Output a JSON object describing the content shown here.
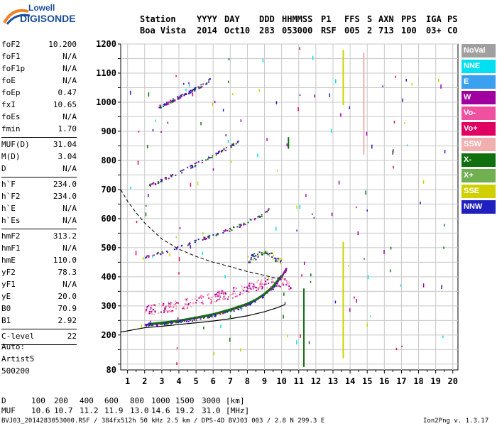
{
  "logo": {
    "top": "Lowell",
    "main": "DIGISONDE"
  },
  "header": {
    "row1": [
      "Station",
      "YYYY",
      "DAY",
      "DDD",
      "HHMMSS",
      "P1",
      "FFS",
      "S",
      "AXN",
      "PPS",
      "IGA",
      "PS"
    ],
    "row2": [
      "Boa Vista",
      "2014",
      "Oct10",
      "283",
      "053000",
      "RSF",
      "005",
      "2",
      "713",
      "100",
      "03+",
      "C0"
    ]
  },
  "params": [
    {
      "name": "foF2",
      "value": "10.200"
    },
    {
      "name": "foF1",
      "value": "N/A"
    },
    {
      "name": "foF1p",
      "value": "N/A"
    },
    {
      "name": "foE",
      "value": "N/A"
    },
    {
      "name": "foEp",
      "value": "0.47"
    },
    {
      "name": "fxI",
      "value": "10.65"
    },
    {
      "name": "foEs",
      "value": "N/A"
    },
    {
      "name": "fmin",
      "value": "1.70"
    },
    {
      "name": "MUF(D)",
      "value": "31.04"
    },
    {
      "name": "M(D)",
      "value": "3.04"
    },
    {
      "name": "D",
      "value": "N/A"
    },
    {
      "name": "h`F",
      "value": "234.0"
    },
    {
      "name": "h`F2",
      "value": "234.0"
    },
    {
      "name": "h`E",
      "value": "N/A"
    },
    {
      "name": "h`Es",
      "value": "N/A"
    },
    {
      "name": "hmF2",
      "value": "313.2"
    },
    {
      "name": "hmF1",
      "value": "N/A"
    },
    {
      "name": "hmE",
      "value": "110.0"
    },
    {
      "name": "yF2",
      "value": "78.3"
    },
    {
      "name": "yF1",
      "value": "N/A"
    },
    {
      "name": "yE",
      "value": "20.0"
    },
    {
      "name": "B0",
      "value": "70.9"
    },
    {
      "name": "B1",
      "value": "2.92"
    },
    {
      "name": "C-level",
      "value": "22"
    }
  ],
  "auto": {
    "label": "Auto:",
    "artist": "Artist5",
    "code": "500200"
  },
  "footer": {
    "d_label": "D",
    "d_values": [
      "100",
      "200",
      "400",
      "600",
      "800",
      "1000",
      "1500",
      "3000",
      "[km]"
    ],
    "muf_label": "MUF",
    "muf_values": [
      "10.6",
      "10.7",
      "11.2",
      "11.9",
      "13.0",
      "14.6",
      "19.2",
      "31.0",
      "[MHz]"
    ],
    "file_info": "BVJ03_2014283053000.RSF / 384fx512h 50 kHz 2.5 km / DPS-4D BVJ03 003 / 2.8 N 299.3 E",
    "version": "Ion2Png v. 1.3.17"
  },
  "legend": [
    {
      "label": "NoVal",
      "color": "#a0a0a0"
    },
    {
      "label": "NNE",
      "color": "#00e0f0"
    },
    {
      "label": "E",
      "color": "#3aa0f0"
    },
    {
      "label": "W",
      "color": "#a000a0"
    },
    {
      "label": "Vo-",
      "color": "#f050a0"
    },
    {
      "label": "Vo+",
      "color": "#e00060"
    },
    {
      "label": "SSW",
      "color": "#f0b0b0"
    },
    {
      "label": "X-",
      "color": "#107010"
    },
    {
      "label": "X+",
      "color": "#70b050"
    },
    {
      "label": "SSE",
      "color": "#d0d000"
    },
    {
      "label": "NNW",
      "color": "#2020c0"
    }
  ],
  "chart_data": {
    "type": "scatter",
    "x_ticks": [
      1,
      2,
      3,
      4,
      5,
      6,
      7,
      8,
      9,
      10,
      11,
      12,
      13,
      14,
      15,
      16,
      17,
      18,
      19,
      20
    ],
    "y_ticks": [
      80,
      200,
      300,
      400,
      500,
      600,
      700,
      800,
      900,
      1000,
      1100,
      1200
    ],
    "xlim": [
      0.6,
      20.3
    ],
    "ylim": [
      80,
      1200
    ],
    "grid": true,
    "traces": [
      {
        "name": "O-trace",
        "color": "#a000a0",
        "points": [
          [
            2,
            235
          ],
          [
            3,
            240
          ],
          [
            4,
            248
          ],
          [
            5,
            258
          ],
          [
            6,
            270
          ],
          [
            7,
            285
          ],
          [
            8,
            305
          ],
          [
            8.5,
            320
          ],
          [
            9,
            340
          ],
          [
            9.5,
            365
          ],
          [
            10,
            400
          ],
          [
            10.3,
            430
          ]
        ]
      },
      {
        "name": "X-trace",
        "color": "#107010",
        "points": [
          [
            2.2,
            238
          ],
          [
            3,
            243
          ],
          [
            4,
            250
          ],
          [
            5,
            260
          ],
          [
            6,
            272
          ],
          [
            7,
            288
          ],
          [
            8,
            308
          ],
          [
            8.5,
            322
          ],
          [
            9,
            342
          ],
          [
            9.5,
            368
          ],
          [
            10,
            405
          ]
        ]
      },
      {
        "name": "2F trace",
        "color": "#a000a0",
        "points": [
          [
            2,
            470
          ],
          [
            3,
            485
          ],
          [
            4,
            505
          ],
          [
            5,
            525
          ],
          [
            6,
            545
          ],
          [
            7,
            565
          ],
          [
            8,
            590
          ],
          [
            8.8,
            615
          ],
          [
            9.3,
            640
          ]
        ]
      },
      {
        "name": "3F trace",
        "color": "#a000a0",
        "points": [
          [
            2.2,
            715
          ],
          [
            3,
            735
          ],
          [
            4,
            760
          ],
          [
            5,
            790
          ],
          [
            6,
            820
          ],
          [
            7,
            850
          ],
          [
            7.5,
            870
          ]
        ]
      },
      {
        "name": "4F trace",
        "color": "#a000a0",
        "points": [
          [
            2.8,
            985
          ],
          [
            3.5,
            1005
          ],
          [
            4,
            1020
          ],
          [
            4.5,
            1035
          ],
          [
            5,
            1050
          ],
          [
            5.5,
            1065
          ],
          [
            5.8,
            1080
          ]
        ]
      },
      {
        "name": "Es cloud",
        "color": "#f050a0",
        "points": [
          [
            2,
            285
          ],
          [
            3,
            295
          ],
          [
            4,
            305
          ],
          [
            5,
            320
          ],
          [
            6,
            330
          ],
          [
            7,
            345
          ],
          [
            8,
            365
          ],
          [
            9,
            380
          ],
          [
            10,
            385
          ],
          [
            10.5,
            375
          ]
        ]
      },
      {
        "name": "SSE cloud",
        "color": "#d0d000",
        "points": [
          [
            8,
            460
          ],
          [
            8.5,
            475
          ],
          [
            9,
            480
          ],
          [
            9.5,
            470
          ],
          [
            10,
            450
          ]
        ]
      }
    ],
    "profile": [
      [
        0.6,
        210
      ],
      [
        2,
        225
      ],
      [
        3,
        230
      ],
      [
        4,
        236
      ],
      [
        5,
        242
      ],
      [
        6,
        248
      ],
      [
        7,
        256
      ],
      [
        8,
        266
      ],
      [
        9,
        280
      ],
      [
        9.8,
        295
      ],
      [
        10.2,
        305
      ],
      [
        10.2,
        313
      ]
    ],
    "muf_curve": [
      [
        0.6,
        700
      ],
      [
        1,
        660
      ],
      [
        1.5,
        620
      ],
      [
        2,
        585
      ],
      [
        3,
        530
      ],
      [
        4,
        495
      ],
      [
        5,
        470
      ],
      [
        6,
        450
      ],
      [
        7,
        435
      ],
      [
        8,
        418
      ],
      [
        9,
        405
      ],
      [
        10,
        390
      ]
    ],
    "vertical_lines": [
      {
        "x": 13.6,
        "from": 520,
        "to": 120,
        "color": "#d0d000"
      },
      {
        "x": 13.6,
        "from": 1180,
        "to": 990,
        "color": "#d0d000"
      },
      {
        "x": 14.8,
        "from": 1170,
        "to": 820,
        "color": "#f0b0b0"
      },
      {
        "x": 11.3,
        "from": 360,
        "to": 90,
        "color": "#107010"
      },
      {
        "x": 10.4,
        "from": 880,
        "to": 840,
        "color": "#107010"
      }
    ]
  }
}
